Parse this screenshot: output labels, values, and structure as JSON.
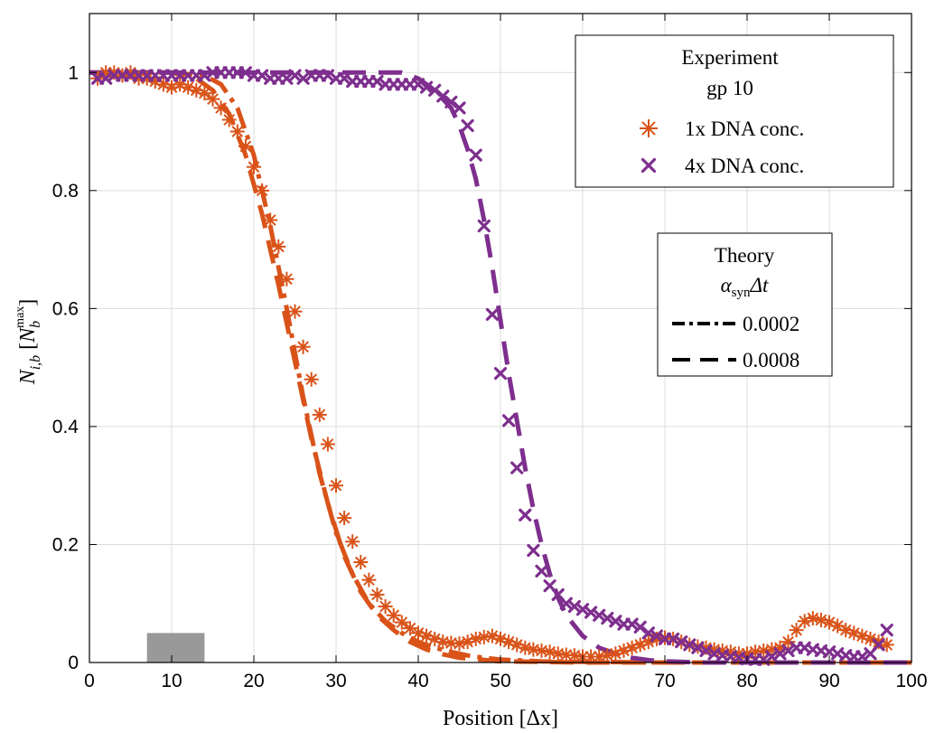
{
  "chart_data": {
    "type": "scatter",
    "xlabel": "Position [Δx]",
    "ylabel": "N_{i,b} [N_b^{max}]",
    "xlim": [
      0,
      100
    ],
    "ylim": [
      0,
      1.1
    ],
    "xticks": [
      0,
      10,
      20,
      30,
      40,
      50,
      60,
      70,
      80,
      90,
      100
    ],
    "yticks": [
      0,
      0.2,
      0.4,
      0.6,
      0.8,
      1
    ],
    "xtick_labels": [
      "0",
      "10",
      "20",
      "30",
      "40",
      "50",
      "60",
      "70",
      "80",
      "90",
      "100"
    ],
    "ytick_labels": [
      "0",
      "0.2",
      "0.4",
      "0.6",
      "0.8",
      "1"
    ],
    "grid": true,
    "colors": {
      "orange": "#d95319",
      "purple": "#7e2f8e",
      "shade": "#999999"
    },
    "shaded_region": {
      "x": [
        7,
        14
      ],
      "y": [
        0,
        0.05
      ]
    },
    "legend_experiment": {
      "title_line1": "Experiment",
      "title_line2": "gp 10",
      "entries": [
        "1x DNA conc.",
        "4x DNA conc."
      ],
      "placement": "top-right"
    },
    "legend_theory": {
      "title_line1": "Theory",
      "title_var_main": "α",
      "title_var_sub": "syn",
      "title_var_tail": "Δt",
      "entries": [
        "0.0002",
        "0.0008"
      ],
      "placement": "right"
    },
    "series": [
      {
        "name": "1x DNA conc.",
        "kind": "markers",
        "marker": "asterisk",
        "color": "#d95319",
        "x": [
          1,
          2,
          3,
          4,
          5,
          6,
          7,
          8,
          9,
          10,
          11,
          12,
          13,
          14,
          15,
          16,
          17,
          18,
          19,
          20,
          21,
          22,
          23,
          24,
          25,
          26,
          27,
          28,
          29,
          30,
          31,
          32,
          33,
          34,
          35,
          36,
          37,
          38,
          39,
          40,
          41,
          42,
          43,
          44,
          45,
          46,
          47,
          48,
          49,
          50,
          51,
          52,
          53,
          54,
          55,
          56,
          57,
          58,
          59,
          60,
          61,
          62,
          63,
          64,
          65,
          66,
          67,
          68,
          69,
          70,
          71,
          72,
          73,
          74,
          75,
          76,
          77,
          78,
          79,
          80,
          81,
          82,
          83,
          84,
          85,
          86,
          87,
          88,
          89,
          90,
          91,
          92,
          93,
          94,
          95,
          96,
          97
        ],
        "y": [
          0.99,
          1.0,
          1.0,
          0.995,
          1.0,
          0.99,
          0.99,
          0.985,
          0.98,
          0.975,
          0.98,
          0.975,
          0.97,
          0.965,
          0.955,
          0.94,
          0.92,
          0.9,
          0.875,
          0.84,
          0.8,
          0.75,
          0.705,
          0.65,
          0.595,
          0.535,
          0.48,
          0.42,
          0.37,
          0.3,
          0.245,
          0.205,
          0.17,
          0.14,
          0.115,
          0.095,
          0.08,
          0.068,
          0.058,
          0.05,
          0.045,
          0.04,
          0.035,
          0.033,
          0.032,
          0.035,
          0.04,
          0.043,
          0.045,
          0.04,
          0.035,
          0.03,
          0.025,
          0.022,
          0.02,
          0.018,
          0.015,
          0.013,
          0.012,
          0.01,
          0.01,
          0.01,
          0.012,
          0.015,
          0.02,
          0.025,
          0.03,
          0.035,
          0.04,
          0.042,
          0.04,
          0.035,
          0.03,
          0.027,
          0.025,
          0.022,
          0.02,
          0.018,
          0.015,
          0.015,
          0.018,
          0.02,
          0.022,
          0.025,
          0.035,
          0.055,
          0.07,
          0.075,
          0.072,
          0.068,
          0.062,
          0.055,
          0.05,
          0.045,
          0.04,
          0.035,
          0.03
        ]
      },
      {
        "name": "4x DNA conc.",
        "kind": "markers",
        "marker": "x",
        "color": "#7e2f8e",
        "x": [
          1,
          2,
          3,
          4,
          5,
          6,
          7,
          8,
          9,
          10,
          11,
          12,
          13,
          14,
          15,
          16,
          17,
          18,
          19,
          20,
          21,
          22,
          23,
          24,
          25,
          26,
          27,
          28,
          29,
          30,
          31,
          32,
          33,
          34,
          35,
          36,
          37,
          38,
          39,
          40,
          41,
          42,
          43,
          44,
          45,
          46,
          47,
          48,
          49,
          50,
          51,
          52,
          53,
          54,
          55,
          56,
          57,
          58,
          59,
          60,
          61,
          62,
          63,
          64,
          65,
          66,
          67,
          68,
          69,
          70,
          71,
          72,
          73,
          74,
          75,
          76,
          77,
          78,
          79,
          80,
          81,
          82,
          83,
          84,
          85,
          86,
          87,
          88,
          89,
          90,
          91,
          92,
          93,
          94,
          95,
          96,
          97
        ],
        "y": [
          0.99,
          0.99,
          0.995,
          0.995,
          0.995,
          0.995,
          0.995,
          0.995,
          0.995,
          0.995,
          0.995,
          0.995,
          0.995,
          0.995,
          1.0,
          1.0,
          1.0,
          1.0,
          1.0,
          0.995,
          0.995,
          0.99,
          0.99,
          0.99,
          0.995,
          0.99,
          0.995,
          0.995,
          0.995,
          0.99,
          0.99,
          0.985,
          0.985,
          0.985,
          0.985,
          0.98,
          0.98,
          0.98,
          0.98,
          0.98,
          0.975,
          0.97,
          0.96,
          0.95,
          0.94,
          0.91,
          0.86,
          0.74,
          0.59,
          0.49,
          0.41,
          0.33,
          0.25,
          0.19,
          0.155,
          0.13,
          0.115,
          0.1,
          0.095,
          0.09,
          0.085,
          0.08,
          0.075,
          0.07,
          0.065,
          0.065,
          0.06,
          0.05,
          0.045,
          0.04,
          0.04,
          0.035,
          0.03,
          0.025,
          0.02,
          0.015,
          0.012,
          0.01,
          0.008,
          0.006,
          0.005,
          0.005,
          0.01,
          0.015,
          0.02,
          0.025,
          0.025,
          0.022,
          0.02,
          0.018,
          0.015,
          0.012,
          0.01,
          0.01,
          0.015,
          0.03,
          0.055
        ]
      },
      {
        "name": "0.0002",
        "kind": "line",
        "dash": "dashdot",
        "color": "#d95319",
        "x": [
          0,
          5,
          10,
          14,
          16,
          18,
          20,
          22,
          24,
          26,
          28,
          30,
          32,
          34,
          36,
          38,
          40,
          42,
          44,
          46,
          48,
          50,
          55,
          60,
          70,
          80,
          90,
          100
        ],
        "y": [
          1.0,
          1.0,
          1.0,
          0.995,
          0.98,
          0.94,
          0.86,
          0.74,
          0.6,
          0.45,
          0.32,
          0.22,
          0.15,
          0.1,
          0.07,
          0.05,
          0.035,
          0.025,
          0.018,
          0.012,
          0.008,
          0.005,
          0.002,
          0.001,
          0.0,
          0.0,
          0.0,
          0.0
        ]
      },
      {
        "name": "0.0008",
        "kind": "line",
        "dash": "dash",
        "color": "#d95319",
        "x": [
          0,
          5,
          10,
          13,
          15,
          17,
          19,
          21,
          23,
          25,
          27,
          29,
          31,
          33,
          35,
          37,
          39,
          41,
          43,
          45,
          50,
          55,
          60,
          70,
          80,
          90,
          100
        ],
        "y": [
          1.0,
          1.0,
          1.0,
          0.99,
          0.97,
          0.93,
          0.86,
          0.76,
          0.64,
          0.51,
          0.38,
          0.27,
          0.18,
          0.12,
          0.08,
          0.055,
          0.035,
          0.022,
          0.014,
          0.008,
          0.002,
          0.001,
          0.0,
          0.0,
          0.0,
          0.0,
          0.0
        ]
      },
      {
        "name": "0.0008",
        "kind": "line",
        "dash": "dash",
        "color": "#7e2f8e",
        "x": [
          0,
          10,
          20,
          30,
          38,
          40,
          42,
          44,
          45,
          46,
          47,
          48,
          49,
          50,
          51,
          52,
          53,
          54,
          55,
          56,
          57,
          58,
          60,
          62,
          64,
          66,
          68,
          70,
          72,
          74,
          76,
          80,
          90,
          100
        ],
        "y": [
          1.0,
          1.0,
          1.0,
          1.0,
          1.0,
          0.99,
          0.97,
          0.94,
          0.91,
          0.87,
          0.82,
          0.75,
          0.67,
          0.58,
          0.49,
          0.41,
          0.33,
          0.26,
          0.2,
          0.15,
          0.11,
          0.08,
          0.045,
          0.025,
          0.015,
          0.008,
          0.004,
          0.002,
          0.001,
          0.0,
          0.0,
          0.0,
          0.0,
          0.0
        ]
      }
    ]
  }
}
